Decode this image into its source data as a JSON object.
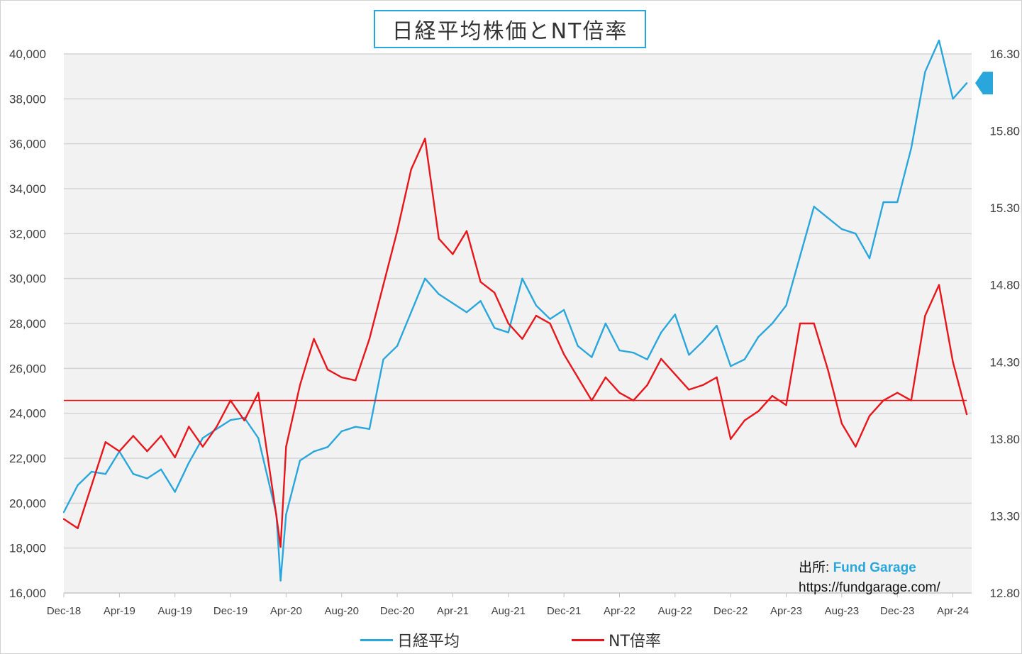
{
  "chart_data": {
    "type": "line",
    "title": "日経平均株価とNT倍率",
    "y_left": {
      "ylim": [
        16000,
        40000
      ],
      "ticks": [
        16000,
        18000,
        20000,
        22000,
        24000,
        26000,
        28000,
        30000,
        32000,
        34000,
        36000,
        38000,
        40000
      ],
      "tick_labels": [
        "16,000",
        "18,000",
        "20,000",
        "22,000",
        "24,000",
        "26,000",
        "28,000",
        "30,000",
        "32,000",
        "34,000",
        "36,000",
        "38,000",
        "40,000"
      ]
    },
    "y_right": {
      "ylim": [
        12.8,
        16.3
      ],
      "ticks": [
        12.8,
        13.3,
        13.8,
        14.3,
        14.8,
        15.3,
        15.8,
        16.3
      ],
      "tick_labels": [
        "12.80",
        "13.30",
        "13.80",
        "14.30",
        "14.80",
        "15.30",
        "15.80",
        "16.30"
      ]
    },
    "x_tick_labels": [
      "Dec-18",
      "Apr-19",
      "Aug-19",
      "Dec-19",
      "Apr-20",
      "Aug-20",
      "Dec-20",
      "Apr-21",
      "Aug-21",
      "Dec-21",
      "Apr-22",
      "Aug-22",
      "Dec-22",
      "Apr-23",
      "Aug-23",
      "Dec-23",
      "Apr-24"
    ],
    "grid": true,
    "legend_position": "bottom",
    "series": [
      {
        "name": "日経平均",
        "color": "#29a6dc",
        "axis": "left",
        "x": [
          "2018-12",
          "2019-01",
          "2019-02",
          "2019-03",
          "2019-04",
          "2019-05",
          "2019-06",
          "2019-07",
          "2019-08",
          "2019-09",
          "2019-10",
          "2019-11",
          "2019-12",
          "2020-01",
          "2020-02",
          "2020-03-10",
          "2020-03-19",
          "2020-04",
          "2020-05",
          "2020-06",
          "2020-07",
          "2020-08",
          "2020-09",
          "2020-10",
          "2020-11",
          "2020-12",
          "2021-01",
          "2021-02",
          "2021-03",
          "2021-04",
          "2021-05",
          "2021-06",
          "2021-07",
          "2021-08",
          "2021-09",
          "2021-10",
          "2021-11",
          "2021-12",
          "2022-01",
          "2022-02",
          "2022-03",
          "2022-04",
          "2022-05",
          "2022-06",
          "2022-07",
          "2022-08",
          "2022-09",
          "2022-10",
          "2022-11",
          "2022-12",
          "2023-01",
          "2023-02",
          "2023-03",
          "2023-04",
          "2023-05",
          "2023-06",
          "2023-07",
          "2023-08",
          "2023-09",
          "2023-10",
          "2023-11",
          "2023-12",
          "2024-01",
          "2024-02",
          "2024-03",
          "2024-04",
          "2024-05"
        ],
        "values": [
          19600,
          20800,
          21400,
          21300,
          22300,
          21300,
          21100,
          21500,
          20500,
          21800,
          22900,
          23300,
          23700,
          23800,
          22900,
          19500,
          16550,
          19500,
          21900,
          22300,
          22500,
          23200,
          23400,
          23300,
          26400,
          27000,
          28500,
          30000,
          29300,
          28900,
          28500,
          29000,
          27800,
          27600,
          30000,
          28800,
          28200,
          28600,
          27000,
          26500,
          28000,
          26800,
          26700,
          26400,
          27600,
          28400,
          26600,
          27200,
          27900,
          26100,
          26400,
          27400,
          28000,
          28800,
          31000,
          33200,
          32700,
          32200,
          32000,
          30900,
          33400,
          33400,
          35800,
          39200,
          40600,
          38000,
          38700
        ]
      },
      {
        "name": "NT倍率",
        "color": "#e8161b",
        "axis": "right",
        "x": [
          "2018-12",
          "2019-01",
          "2019-02",
          "2019-03",
          "2019-04",
          "2019-05",
          "2019-06",
          "2019-07",
          "2019-08",
          "2019-09",
          "2019-10",
          "2019-11",
          "2019-12",
          "2020-01",
          "2020-02",
          "2020-03-10",
          "2020-03-19",
          "2020-04",
          "2020-05",
          "2020-06",
          "2020-07",
          "2020-08",
          "2020-09",
          "2020-10",
          "2020-11",
          "2020-12",
          "2021-01",
          "2021-02",
          "2021-03",
          "2021-04",
          "2021-05",
          "2021-06",
          "2021-07",
          "2021-08",
          "2021-09",
          "2021-10",
          "2021-11",
          "2021-12",
          "2022-01",
          "2022-02",
          "2022-03",
          "2022-04",
          "2022-05",
          "2022-06",
          "2022-07",
          "2022-08",
          "2022-09",
          "2022-10",
          "2022-11",
          "2022-12",
          "2023-01",
          "2023-02",
          "2023-03",
          "2023-04",
          "2023-05",
          "2023-06",
          "2023-07",
          "2023-08",
          "2023-09",
          "2023-10",
          "2023-11",
          "2023-12",
          "2024-01",
          "2024-02",
          "2024-03",
          "2024-04",
          "2024-05"
        ],
        "values": [
          13.28,
          13.22,
          13.5,
          13.78,
          13.72,
          13.82,
          13.72,
          13.82,
          13.68,
          13.88,
          13.75,
          13.88,
          14.05,
          13.92,
          14.1,
          13.3,
          13.1,
          13.75,
          14.15,
          14.45,
          14.25,
          14.2,
          14.18,
          14.45,
          14.8,
          15.15,
          15.55,
          15.75,
          15.1,
          15.0,
          15.15,
          14.82,
          14.75,
          14.55,
          14.45,
          14.6,
          14.55,
          14.35,
          14.2,
          14.05,
          14.2,
          14.1,
          14.05,
          14.15,
          14.32,
          14.22,
          14.12,
          14.15,
          14.2,
          13.8,
          13.92,
          13.98,
          14.08,
          14.02,
          14.55,
          14.55,
          14.25,
          13.9,
          13.75,
          13.95,
          14.05,
          14.1,
          14.05,
          14.6,
          14.8,
          14.3,
          13.96
        ]
      },
      {
        "name": "",
        "color": "#e8161b",
        "axis": "right",
        "style": "reference-line",
        "x": [
          "2018-12",
          "2024-05"
        ],
        "values": [
          14.05,
          14.05
        ]
      }
    ]
  },
  "source": {
    "prefix": "出所",
    "separator": ":",
    "brand": "Fund Garage",
    "url": "https://fundgarage.com/"
  },
  "marker": {
    "color": "#29a6dc",
    "icon": "pointer-arrow-icon"
  }
}
